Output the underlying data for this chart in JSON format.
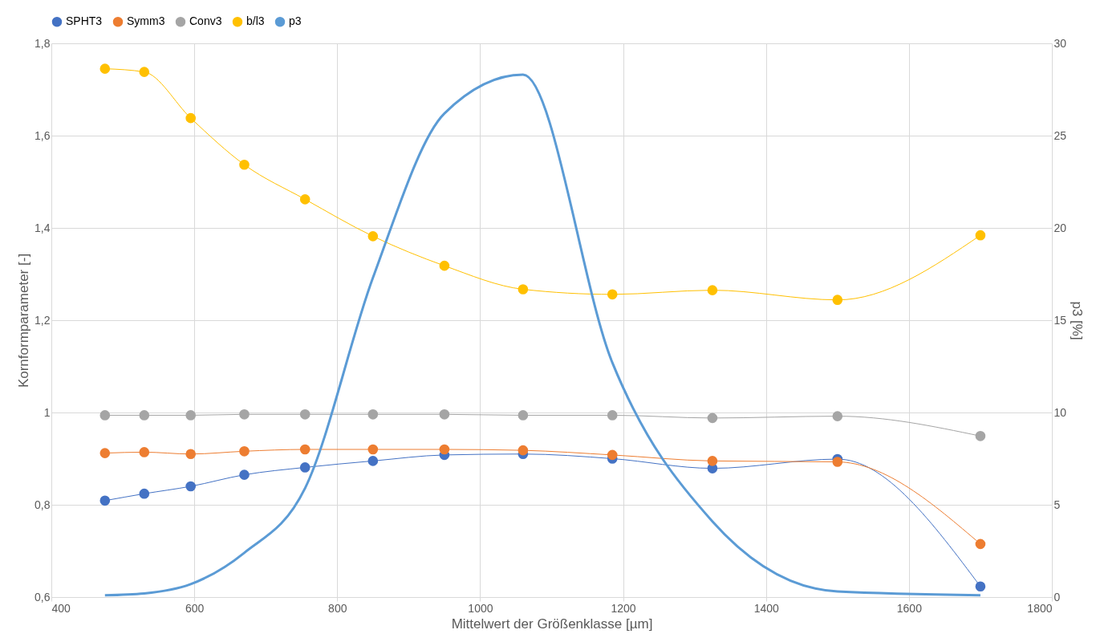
{
  "chart_data": {
    "type": "line",
    "xlabel": "Mittelwert der Größenklasse [µm]",
    "ylabel": "Kornformparameter [-]",
    "y2label": "p3 [%]",
    "x": [
      475,
      530,
      595,
      670,
      755,
      850,
      950,
      1060,
      1185,
      1325,
      1500,
      1700
    ],
    "series": [
      {
        "name": "SPHT3",
        "color": "#4472c4",
        "marker": "circle",
        "values": [
          0.809,
          0.824,
          0.84,
          0.865,
          0.881,
          0.895,
          0.908,
          0.91,
          0.9,
          0.879,
          0.899,
          0.623
        ]
      },
      {
        "name": "Symm3",
        "color": "#ed7d31",
        "marker": "circle",
        "values": [
          0.912,
          0.914,
          0.91,
          0.916,
          0.92,
          0.92,
          0.92,
          0.918,
          0.908,
          0.895,
          0.893,
          0.715
        ]
      },
      {
        "name": "Conv3",
        "color": "#a5a5a5",
        "marker": "circle",
        "values": [
          0.994,
          0.994,
          0.994,
          0.996,
          0.996,
          0.996,
          0.996,
          0.994,
          0.994,
          0.988,
          0.992,
          0.949
        ]
      },
      {
        "name": "b/l3",
        "color": "#ffc000",
        "marker": "circle",
        "values": [
          1.745,
          1.738,
          1.638,
          1.537,
          1.462,
          1.382,
          1.318,
          1.267,
          1.256,
          1.265,
          1.244,
          1.384
        ]
      },
      {
        "name": "p3",
        "color": "#5b9bd5",
        "marker": "none",
        "axis": "y2",
        "values": [
          0.1,
          0.2,
          0.7,
          2.4,
          5.9,
          17.3,
          26.2,
          28.3,
          12.7,
          4.1,
          0.3,
          0.1
        ]
      }
    ],
    "xlim": [
      400,
      1800
    ],
    "xticks": [
      400,
      600,
      800,
      1000,
      1200,
      1400,
      1600,
      1800
    ],
    "ylim": [
      0.6,
      1.8
    ],
    "yticks": [
      {
        "value": 0.6,
        "label": "0,6"
      },
      {
        "value": 0.8,
        "label": "0,8"
      },
      1,
      {
        "value": 1.2,
        "label": "1,2"
      },
      {
        "value": 1.4,
        "label": "1,4"
      },
      {
        "value": 1.6,
        "label": "1,6"
      },
      {
        "value": 1.8,
        "label": "1,8"
      }
    ],
    "y2lim": [
      0,
      30
    ],
    "y2ticks": [
      0,
      5,
      10,
      15,
      20,
      25,
      30
    ],
    "grid": true,
    "legend": "top",
    "line_style": "solid"
  }
}
